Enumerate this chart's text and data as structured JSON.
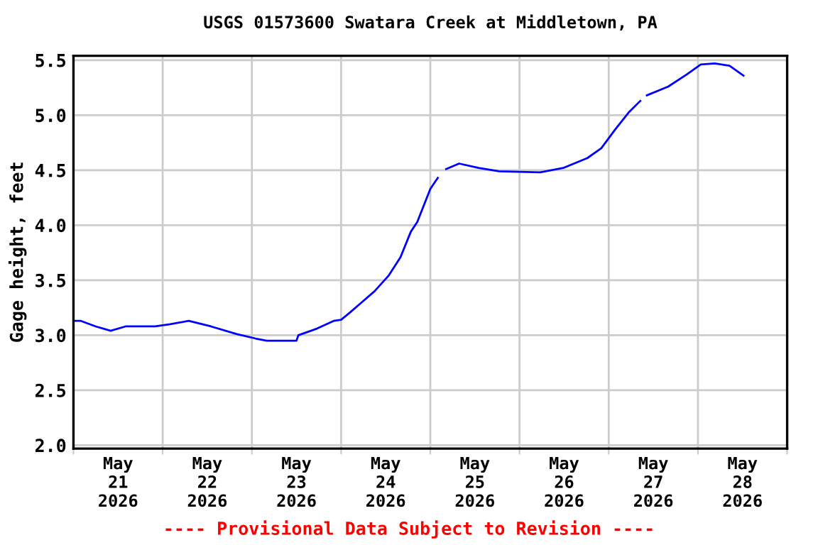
{
  "chart_data": {
    "type": "line",
    "title": "USGS 01573600 Swatara Creek at Middletown, PA",
    "ylabel": "Gage height, feet",
    "x": [
      "2026-05-21T00:15",
      "2026-05-21T02:00",
      "2026-05-21T06:00",
      "2026-05-21T10:00",
      "2026-05-21T14:00",
      "2026-05-21T22:00",
      "2026-05-22T02:00",
      "2026-05-22T07:00",
      "2026-05-22T13:00",
      "2026-05-22T20:00",
      "2026-05-23T01:00",
      "2026-05-23T04:00",
      "2026-05-23T12:00",
      "2026-05-23T12:30",
      "2026-05-23T17:30",
      "2026-05-23T22:00",
      "2026-05-24T00:00",
      "2026-05-24T02:30",
      "2026-05-24T09:00",
      "2026-05-24T12:45",
      "2026-05-24T16:00",
      "2026-05-24T18:45",
      "2026-05-24T20:30",
      "2026-05-25T00:00",
      "2026-05-25T02:00",
      "2026-05-25T03:00",
      "2026-05-25T04:15",
      "2026-05-25T07:45",
      "2026-05-25T13:00",
      "2026-05-25T18:30",
      "2026-05-26T05:30",
      "2026-05-26T11:45",
      "2026-05-26T18:15",
      "2026-05-26T22:00",
      "2026-05-27T01:45",
      "2026-05-27T05:30",
      "2026-05-27T08:30",
      "2026-05-27T09:15",
      "2026-05-27T10:15",
      "2026-05-27T16:00",
      "2026-05-27T21:00",
      "2026-05-28T00:45",
      "2026-05-28T04:30",
      "2026-05-28T08:30",
      "2026-05-28T12:15"
    ],
    "series": [
      {
        "color": "#0000ff",
        "values": [
          3.13,
          3.13,
          3.08,
          3.04,
          3.08,
          3.08,
          3.1,
          3.13,
          3.08,
          3.01,
          2.97,
          2.95,
          2.95,
          3.0,
          3.06,
          3.13,
          3.14,
          3.21,
          3.4,
          3.54,
          3.71,
          3.94,
          4.03,
          4.33,
          4.43,
          null,
          4.51,
          4.56,
          4.52,
          4.49,
          4.48,
          4.52,
          4.61,
          4.7,
          4.87,
          5.03,
          5.13,
          null,
          5.18,
          5.26,
          5.37,
          5.46,
          5.47,
          5.45,
          5.36
        ]
      }
    ],
    "xlim": [
      "2026-05-21T00:00",
      "2026-05-29T00:00"
    ],
    "xticks": [
      {
        "value": "2026-05-21T00:00",
        "label": null
      },
      {
        "value": "2026-05-21T12:00",
        "label": "May\n21\n2026"
      },
      {
        "value": "2026-05-22T00:00",
        "label": null
      },
      {
        "value": "2026-05-22T12:00",
        "label": "May\n22\n2026"
      },
      {
        "value": "2026-05-23T00:00",
        "label": null
      },
      {
        "value": "2026-05-23T12:00",
        "label": "May\n23\n2026"
      },
      {
        "value": "2026-05-24T00:00",
        "label": null
      },
      {
        "value": "2026-05-24T12:00",
        "label": "May\n24\n2026"
      },
      {
        "value": "2026-05-25T00:00",
        "label": null
      },
      {
        "value": "2026-05-25T12:00",
        "label": "May\n25\n2026"
      },
      {
        "value": "2026-05-26T00:00",
        "label": null
      },
      {
        "value": "2026-05-26T12:00",
        "label": "May\n26\n2026"
      },
      {
        "value": "2026-05-27T00:00",
        "label": null
      },
      {
        "value": "2026-05-27T12:00",
        "label": "May\n27\n2026"
      },
      {
        "value": "2026-05-28T00:00",
        "label": null
      },
      {
        "value": "2026-05-28T12:00",
        "label": "May\n28\n2026"
      },
      {
        "value": "2026-05-29T00:00",
        "label": null
      }
    ],
    "ylim": [
      1.97,
      5.54
    ],
    "yticks": [
      {
        "value": 2,
        "label": "2.0"
      },
      2.5,
      {
        "value": 3,
        "label": "3.0"
      },
      3.5,
      {
        "value": 4,
        "label": "4.0"
      },
      4.5,
      {
        "value": 5,
        "label": "5.0"
      },
      5.5
    ],
    "grid": true,
    "marker": "none",
    "line_style": "solid",
    "annotations": [
      "---- Provisional Data Subject to Revision ----"
    ]
  }
}
